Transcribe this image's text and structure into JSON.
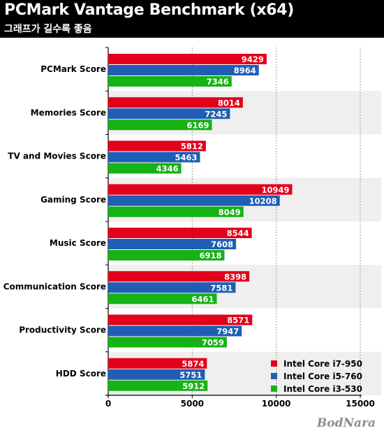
{
  "header": {
    "title": "PCMark Vantage Benchmark (x64)",
    "subtitle": "그래프가 길수록 좋음"
  },
  "watermark": "BodNara",
  "chart_data": {
    "type": "bar",
    "orientation": "horizontal",
    "categories": [
      "PCMark Score",
      "Memories Score",
      "TV and Movies Score",
      "Gaming Score",
      "Music Score",
      "Communication Score",
      "Productivity Score",
      "HDD Score"
    ],
    "series": [
      {
        "name": "Intel Core i7-950",
        "color": "#e3001b",
        "values": [
          9429,
          8014,
          5812,
          10949,
          8544,
          8398,
          8571,
          5874
        ]
      },
      {
        "name": "Intel Core i5-760",
        "color": "#1f5eb4",
        "values": [
          8964,
          7245,
          5463,
          10208,
          7608,
          7581,
          7947,
          5751
        ]
      },
      {
        "name": "Intel Core i3-530",
        "color": "#16b216",
        "values": [
          7346,
          6169,
          4346,
          8049,
          6918,
          6461,
          7059,
          5912
        ]
      }
    ],
    "xlim": [
      0,
      15000
    ],
    "xticks": [
      "0",
      "5000",
      "10000",
      "15000"
    ],
    "grid": true,
    "legend_position": "bottom-right",
    "data_labels": true
  }
}
